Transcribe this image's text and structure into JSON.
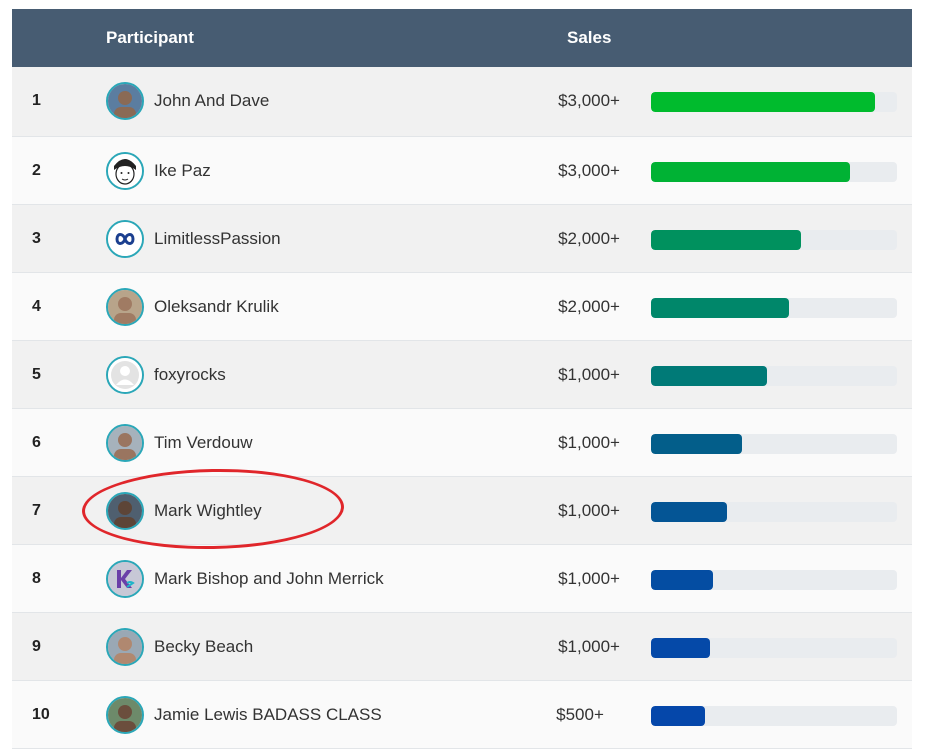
{
  "header": {
    "participant_label": "Participant",
    "sales_label": "Sales"
  },
  "rows": [
    {
      "rank": "1",
      "name": "John And Dave",
      "sales": "$3,000+",
      "progress": 0.91,
      "color": "#00bb2d",
      "avatar": "avatar-photo-icon"
    },
    {
      "rank": "2",
      "name": "Ike Paz",
      "sales": "$3,000+",
      "progress": 0.81,
      "color": "#00b234",
      "avatar": "avatar-cartoon-icon"
    },
    {
      "rank": "3",
      "name": "LimitlessPassion",
      "sales": "$2,000+",
      "progress": 0.61,
      "color": "#00915e",
      "avatar": "infinity-logo-icon"
    },
    {
      "rank": "4",
      "name": "Oleksandr Krulik",
      "sales": "$2,000+",
      "progress": 0.56,
      "color": "#00876a",
      "avatar": "avatar-photo-icon"
    },
    {
      "rank": "5",
      "name": "foxyrocks",
      "sales": "$1,000+",
      "progress": 0.47,
      "color": "#007a77",
      "avatar": "avatar-placeholder-icon"
    },
    {
      "rank": "6",
      "name": "Tim Verdouw",
      "sales": "$1,000+",
      "progress": 0.37,
      "color": "#035e8a",
      "avatar": "avatar-photo-icon"
    },
    {
      "rank": "7",
      "name": "Mark Wightley",
      "sales": "$1,000+",
      "progress": 0.31,
      "color": "#045595",
      "avatar": "avatar-photo-icon"
    },
    {
      "rank": "8",
      "name": "Mark Bishop and John Merrick",
      "sales": "$1,000+",
      "progress": 0.25,
      "color": "#044da2",
      "avatar": "ks-logo-icon"
    },
    {
      "rank": "9",
      "name": "Becky Beach",
      "sales": "$1,000+",
      "progress": 0.24,
      "color": "#0549a8",
      "avatar": "avatar-photo-icon"
    },
    {
      "rank": "10",
      "name": "Jamie Lewis BADASS CLASS",
      "sales": "$500+",
      "progress": 0.22,
      "color": "#0547aa",
      "avatar": "avatar-photo-icon"
    }
  ],
  "highlight_color": "#e0262b"
}
